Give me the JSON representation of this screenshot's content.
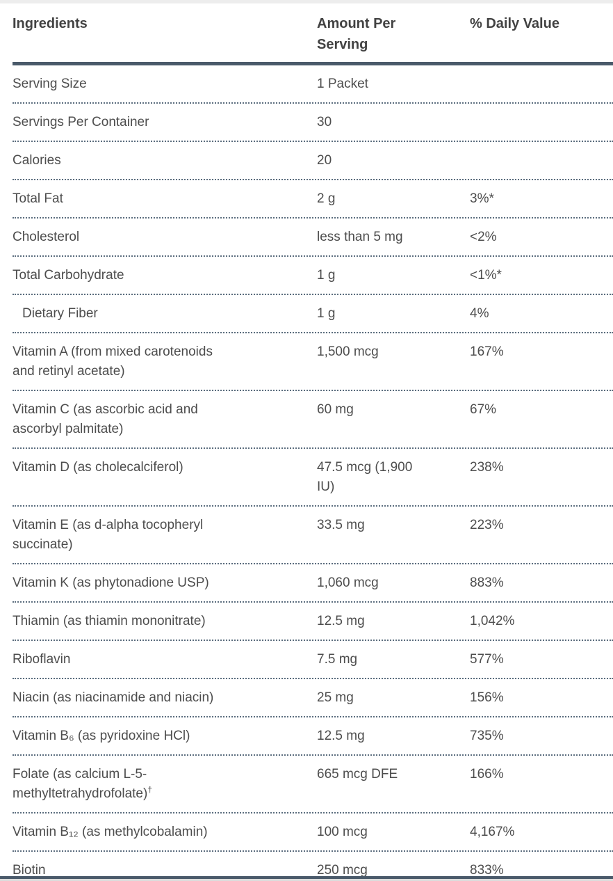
{
  "header": {
    "columns": [
      {
        "key": "ingredients",
        "lines": [
          "Ingredients"
        ]
      },
      {
        "key": "amount-per-serving",
        "lines": [
          "Amount Per",
          "Serving"
        ]
      },
      {
        "key": "daily-value",
        "lines": [
          "% Daily Value"
        ]
      }
    ]
  },
  "rows": [
    {
      "name": [
        "Serving Size"
      ],
      "amount": [
        "1 Packet"
      ],
      "dv": "",
      "indent": false
    },
    {
      "name": [
        "Servings Per Container"
      ],
      "amount": [
        "30"
      ],
      "dv": "",
      "indent": false
    },
    {
      "name": [
        "Calories"
      ],
      "amount": [
        "20"
      ],
      "dv": "",
      "indent": false
    },
    {
      "name": [
        "Total Fat"
      ],
      "amount": [
        "2 g"
      ],
      "dv": "3%*",
      "indent": false
    },
    {
      "name": [
        "Cholesterol"
      ],
      "amount": [
        "less than 5 mg"
      ],
      "dv": "<2%",
      "indent": false
    },
    {
      "name": [
        "Total Carbohydrate"
      ],
      "amount": [
        "1 g"
      ],
      "dv": "<1%*",
      "indent": false
    },
    {
      "name": [
        "Dietary Fiber"
      ],
      "amount": [
        "1 g"
      ],
      "dv": "4%",
      "indent": true
    },
    {
      "name": [
        "Vitamin A (from mixed carotenoids",
        "and retinyl acetate)"
      ],
      "amount": [
        "1,500 mcg"
      ],
      "dv": "167%",
      "indent": false
    },
    {
      "name": [
        "Vitamin C (as ascorbic acid and",
        "ascorbyl palmitate)"
      ],
      "amount": [
        "60 mg"
      ],
      "dv": "67%",
      "indent": false
    },
    {
      "name": [
        "Vitamin D (as cholecalciferol)"
      ],
      "amount": [
        "47.5 mcg (1,900",
        "IU)"
      ],
      "dv": "238%",
      "indent": false
    },
    {
      "name": [
        "Vitamin E (as d-alpha tocopheryl",
        "succinate)"
      ],
      "amount": [
        "33.5 mg"
      ],
      "dv": "223%",
      "indent": false
    },
    {
      "name": [
        "Vitamin K (as phytonadione USP)"
      ],
      "amount": [
        "1,060 mcg"
      ],
      "dv": "883%",
      "indent": false
    },
    {
      "name": [
        "Thiamin (as thiamin mononitrate)"
      ],
      "amount": [
        "12.5 mg"
      ],
      "dv": "1,042%",
      "indent": false
    },
    {
      "name": [
        "Riboflavin"
      ],
      "amount": [
        "7.5 mg"
      ],
      "dv": "577%",
      "indent": false
    },
    {
      "name": [
        "Niacin (as niacinamide and niacin)"
      ],
      "amount": [
        "25 mg"
      ],
      "dv": "156%",
      "indent": false
    },
    {
      "name": [
        "Vitamin B₆ (as pyridoxine HCl)"
      ],
      "amount": [
        "12.5 mg"
      ],
      "dv": "735%",
      "indent": false
    },
    {
      "name": [
        "Folate (as calcium L-5-",
        "methyltetrahydrofolate)†"
      ],
      "amount": [
        "665 mcg DFE"
      ],
      "dv": "166%",
      "indent": false
    },
    {
      "name": [
        "Vitamin B₁₂ (as methylcobalamin)"
      ],
      "amount": [
        "100 mcg"
      ],
      "dv": "4,167%",
      "indent": false
    },
    {
      "name": [
        "Biotin"
      ],
      "amount": [
        "250 mcg"
      ],
      "dv": "833%",
      "indent": false
    }
  ],
  "colors": {
    "text": "#4d4d4d",
    "header_text": "#424242",
    "thick_rule": "#4a5a6a",
    "dotted_rule": "#5b6d7e",
    "top_strip": "#ededed",
    "bottom_strip": "#dcdcdc",
    "background": "#ffffff"
  }
}
